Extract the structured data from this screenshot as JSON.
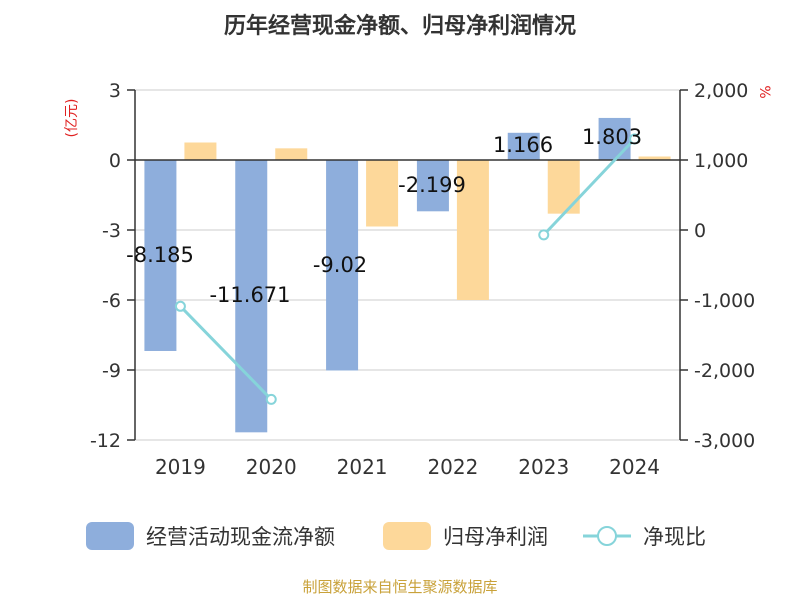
{
  "chart_data": {
    "type": "bar",
    "title": "历年经营现金净额、归母净利润情况",
    "left_axis_unit": "(亿元)",
    "right_axis_unit": "%",
    "source": "制图数据来自恒生聚源数据库",
    "categories": [
      "2019",
      "2020",
      "2021",
      "2022",
      "2023",
      "2024"
    ],
    "y_left": {
      "ylim": [
        -12,
        3
      ],
      "ticks": [
        "3",
        "0",
        "-3",
        "-6",
        "-9",
        "-12"
      ]
    },
    "y_right": {
      "ylim": [
        -3000,
        2000
      ],
      "ticks": [
        "2,000",
        "1,000",
        "0",
        "-1,000",
        "-2,000",
        "-3,000"
      ]
    },
    "series": [
      {
        "name": "经营活动现金流净额",
        "type": "bar",
        "axis": "left",
        "color": "#8eaedc",
        "values": [
          -8.185,
          -11.671,
          -9.02,
          -2.199,
          1.166,
          1.803
        ],
        "labels": [
          "-8.185",
          "-11.671",
          "-9.02",
          "-2.199",
          "1.166",
          "1.803"
        ]
      },
      {
        "name": "归母净利润",
        "type": "bar",
        "axis": "left",
        "color": "#fdd89a",
        "values": [
          0.75,
          0.5,
          -2.85,
          -6.0,
          -2.3,
          0.15
        ]
      },
      {
        "name": "净现比",
        "type": "line",
        "axis": "right",
        "color": "#86d4da",
        "values": [
          -1090,
          -2420,
          null,
          null,
          -70,
          1300
        ]
      }
    ],
    "grid": true,
    "legend_position": "bottom"
  }
}
